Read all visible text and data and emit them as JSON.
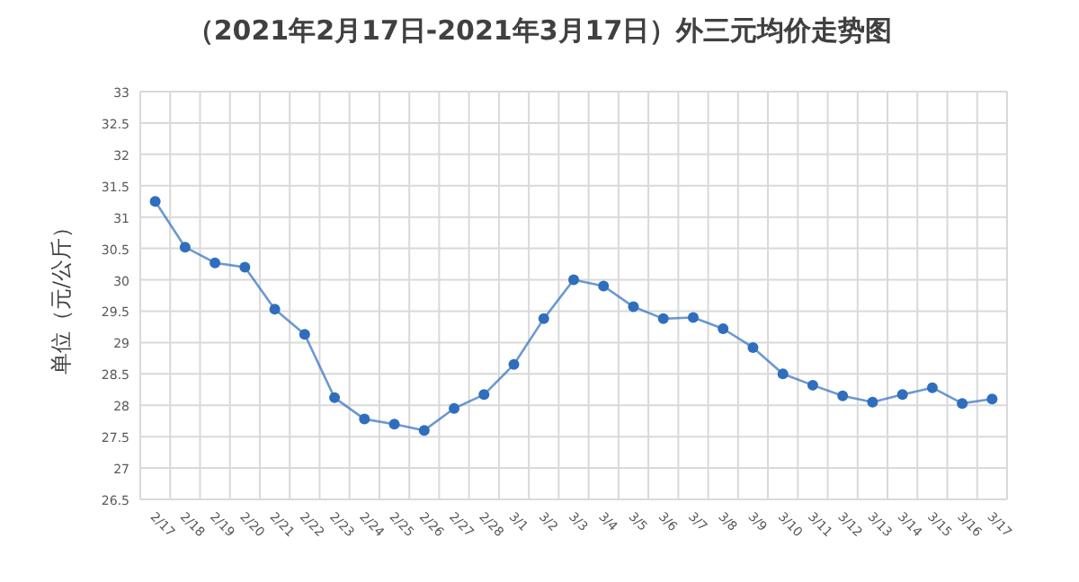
{
  "chart_data": {
    "type": "line",
    "title": "（2021年2月17日-2021年3月17日）外三元均价走势图",
    "ylabel": "单位（元/公斤）",
    "categories": [
      "2/17",
      "2/18",
      "2/19",
      "2/20",
      "2/21",
      "2/22",
      "2/23",
      "2/24",
      "2/25",
      "2/26",
      "2/27",
      "2/28",
      "3/1",
      "3/2",
      "3/3",
      "3/4",
      "3/5",
      "3/6",
      "3/7",
      "3/8",
      "3/9",
      "3/10",
      "3/11",
      "3/12",
      "3/13",
      "3/14",
      "3/15",
      "3/16",
      "3/17"
    ],
    "series": [
      {
        "color": "#2f6ebd",
        "values": [
          31.25,
          30.52,
          30.27,
          30.2,
          29.53,
          29.13,
          28.12,
          27.78,
          27.7,
          27.6,
          27.95,
          28.17,
          28.65,
          29.38,
          30.0,
          29.9,
          29.57,
          29.38,
          29.4,
          29.22,
          28.92,
          28.5,
          28.32,
          28.15,
          28.05,
          28.17,
          28.28,
          28.03,
          28.1
        ]
      }
    ],
    "ylim": [
      26.5,
      33
    ],
    "yticks": [
      26.5,
      27,
      27.5,
      28,
      28.5,
      29,
      29.5,
      30,
      30.5,
      31,
      31.5,
      32,
      32.5,
      33
    ],
    "grid": true,
    "marker": "circle",
    "line_style": "solid"
  }
}
